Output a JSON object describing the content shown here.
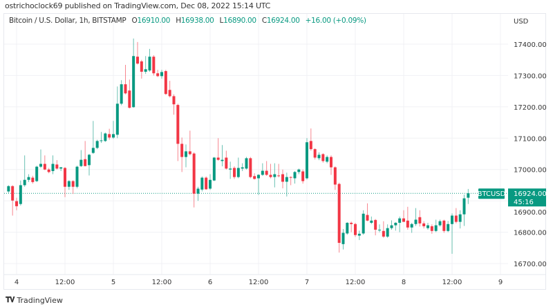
{
  "header": {
    "published": "ostrichoclock69 published on TradingView.com, Dec 08, 2022 15:14 UTC"
  },
  "legend": {
    "symbol": "Bitcoin / U.S. Dollar, 1h, BITSTAMP",
    "o_label": "O",
    "o": "16910.00",
    "h_label": "H",
    "h": "16938.00",
    "l_label": "L",
    "l": "16890.00",
    "c_label": "C",
    "c": "16924.00",
    "change": "+16.00 (+0.09%)"
  },
  "price_axis": {
    "currency": "USD"
  },
  "last_price": {
    "ticker": "BTCUSD",
    "price": "16924.00",
    "countdown": "45:16"
  },
  "footer": {
    "brand": "TradingView",
    "logo_icon": "tradingview-logo-icon"
  },
  "colors": {
    "up": "#089981",
    "down": "#f23645",
    "grid": "#f0f1f4",
    "text": "#333333"
  },
  "chart_data": {
    "type": "candlestick",
    "title": "Bitcoin / U.S. Dollar, 1h, BITSTAMP",
    "ylabel": "USD",
    "ylim": [
      16650,
      17450
    ],
    "yticks": [
      17400,
      17300,
      17200,
      17100,
      17000,
      16900,
      16800,
      16700
    ],
    "ytick_labels": [
      "17400.00",
      "17300.00",
      "17200.00",
      "17100.00",
      "17000.00",
      "16900.00",
      "16800.00",
      "16700.00"
    ],
    "xtick_labels": [
      "4",
      "12:00",
      "5",
      "12:00",
      "6",
      "12:00",
      "7",
      "12:00",
      "8",
      "12:00",
      "9"
    ],
    "xtick_hours": [
      0,
      12,
      24,
      36,
      48,
      60,
      72,
      84,
      96,
      108,
      120
    ],
    "first_candle_hour": -2,
    "grid": true,
    "ohlc": [
      [
        16930,
        16950,
        16925,
        16947
      ],
      [
        16947,
        16950,
        16853,
        16901
      ],
      [
        16899,
        16910,
        16870,
        16883
      ],
      [
        16890,
        16965,
        16885,
        16950
      ],
      [
        16950,
        17045,
        16945,
        16967
      ],
      [
        16967,
        16985,
        16960,
        16976
      ],
      [
        16974,
        16980,
        16955,
        16960
      ],
      [
        16963,
        17012,
        16960,
        17009
      ],
      [
        17009,
        17064,
        17005,
        17018
      ],
      [
        17018,
        17045,
        16998,
        17000
      ],
      [
        17000,
        17005,
        16988,
        16992
      ],
      [
        16995,
        17045,
        16985,
        17018
      ],
      [
        17016,
        17030,
        17000,
        17003
      ],
      [
        17003,
        17008,
        16995,
        17007
      ],
      [
        17005,
        17008,
        16912,
        16945
      ],
      [
        16945,
        16966,
        16935,
        16963
      ],
      [
        16963,
        16966,
        16922,
        16945
      ],
      [
        16945,
        17012,
        16940,
        17009
      ],
      [
        17011,
        17062,
        17008,
        17031
      ],
      [
        17033,
        17091,
        17010,
        17011
      ],
      [
        17014,
        17050,
        16981,
        17047
      ],
      [
        17053,
        17155,
        17050,
        17069
      ],
      [
        17069,
        17095,
        17065,
        17091
      ],
      [
        17091,
        17120,
        17085,
        17093
      ],
      [
        17091,
        17118,
        17088,
        17115
      ],
      [
        17113,
        17130,
        17095,
        17102
      ],
      [
        17102,
        17155,
        17098,
        17113
      ],
      [
        17111,
        17265,
        17100,
        17210
      ],
      [
        17210,
        17285,
        17205,
        17272
      ],
      [
        17272,
        17334,
        17240,
        17243
      ],
      [
        17252,
        17287,
        17195,
        17197
      ],
      [
        17199,
        17418,
        17197,
        17362
      ],
      [
        17360,
        17407,
        17335,
        17338
      ],
      [
        17345,
        17350,
        17290,
        17312
      ],
      [
        17312,
        17362,
        17305,
        17320
      ],
      [
        17316,
        17385,
        17312,
        17360
      ],
      [
        17360,
        17365,
        17300,
        17307
      ],
      [
        17307,
        17318,
        17295,
        17298
      ],
      [
        17298,
        17318,
        17290,
        17311
      ],
      [
        17314,
        17318,
        17238,
        17241
      ],
      [
        17254,
        17283,
        17230,
        17234
      ],
      [
        17234,
        17240,
        17175,
        17208
      ],
      [
        17206,
        17210,
        17027,
        17082
      ],
      [
        17082,
        17102,
        16992,
        17040
      ],
      [
        17040,
        17080,
        17007,
        17058
      ],
      [
        17058,
        17124,
        17045,
        17049
      ],
      [
        17051,
        17055,
        16879,
        16923
      ],
      [
        16923,
        16945,
        16900,
        16939
      ],
      [
        16936,
        16978,
        16930,
        16974
      ],
      [
        16974,
        16978,
        16935,
        16937
      ],
      [
        16939,
        16985,
        16935,
        16967
      ],
      [
        16965,
        17040,
        16963,
        17038
      ],
      [
        17038,
        17100,
        17028,
        17031
      ],
      [
        17027,
        17078,
        17010,
        17031
      ],
      [
        17038,
        17060,
        17000,
        17003
      ],
      [
        17000,
        17025,
        16970,
        17003
      ],
      [
        17005,
        17010,
        16970,
        16976
      ],
      [
        16976,
        17038,
        16972,
        17005
      ],
      [
        17003,
        17020,
        16995,
        17007
      ],
      [
        17003,
        17040,
        17000,
        17036
      ],
      [
        17036,
        17040,
        16972,
        16976
      ],
      [
        16979,
        16988,
        16968,
        16970
      ],
      [
        16972,
        16985,
        16919,
        16983
      ],
      [
        16983,
        17020,
        16980,
        16996
      ],
      [
        16996,
        17027,
        16980,
        16983
      ],
      [
        16983,
        17018,
        16972,
        16976
      ],
      [
        16976,
        17020,
        16943,
        16985
      ],
      [
        16981,
        17018,
        16975,
        16979
      ],
      [
        16985,
        17000,
        16940,
        16961
      ],
      [
        16961,
        16990,
        16914,
        16976
      ],
      [
        16976,
        16978,
        16950,
        16974
      ],
      [
        16972,
        16995,
        16955,
        16992
      ],
      [
        16992,
        17003,
        16985,
        17000
      ],
      [
        16994,
        17000,
        16955,
        16963
      ],
      [
        16972,
        17100,
        16968,
        17087
      ],
      [
        17091,
        17131,
        17060,
        17065
      ],
      [
        17065,
        17068,
        17032,
        17038
      ],
      [
        17036,
        17055,
        17030,
        17047
      ],
      [
        17049,
        17052,
        17022,
        17027
      ],
      [
        17025,
        17045,
        17020,
        17040
      ],
      [
        17040,
        17045,
        16983,
        17007
      ],
      [
        17007,
        17010,
        16935,
        16952
      ],
      [
        16954,
        16958,
        16735,
        16766
      ],
      [
        16762,
        16810,
        16745,
        16798
      ],
      [
        16796,
        16832,
        16792,
        16830
      ],
      [
        16830,
        16834,
        16800,
        16826
      ],
      [
        16826,
        16830,
        16785,
        16791
      ],
      [
        16789,
        16805,
        16775,
        16795
      ],
      [
        16796,
        16870,
        16792,
        16859
      ],
      [
        16855,
        16892,
        16835,
        16837
      ],
      [
        16830,
        16850,
        16826,
        16837
      ],
      [
        16839,
        16842,
        16790,
        16808
      ],
      [
        16806,
        16825,
        16800,
        16808
      ],
      [
        16804,
        16835,
        16782,
        16786
      ],
      [
        16786,
        16825,
        16782,
        16813
      ],
      [
        16813,
        16838,
        16808,
        16822
      ],
      [
        16822,
        16832,
        16805,
        16830
      ],
      [
        16830,
        16850,
        16800,
        16844
      ],
      [
        16844,
        16870,
        16838,
        16833
      ],
      [
        16837,
        16881,
        16808,
        16815
      ],
      [
        16815,
        16830,
        16798,
        16826
      ],
      [
        16826,
        16877,
        16820,
        16840
      ],
      [
        16848,
        16870,
        16818,
        16828
      ],
      [
        16828,
        16835,
        16812,
        16819
      ],
      [
        16813,
        16830,
        16808,
        16822
      ],
      [
        16819,
        16825,
        16795,
        16804
      ],
      [
        16804,
        16840,
        16800,
        16822
      ],
      [
        16822,
        16840,
        16818,
        16835
      ],
      [
        16837,
        16840,
        16798,
        16804
      ],
      [
        16804,
        16836,
        16800,
        16826
      ],
      [
        16826,
        16860,
        16731,
        16853
      ],
      [
        16853,
        16877,
        16828,
        16833
      ],
      [
        16833,
        16870,
        16812,
        16857
      ],
      [
        16857,
        16920,
        16820,
        16908
      ],
      [
        16910,
        16938,
        16890,
        16924
      ]
    ],
    "last_close": 16924
  }
}
